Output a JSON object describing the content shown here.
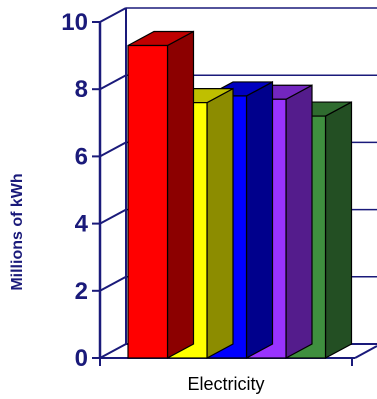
{
  "chart_data": {
    "type": "bar",
    "title": "",
    "xlabel": "",
    "ylabel": "Millions of kWh",
    "categories": [
      "Electricity"
    ],
    "series": [
      {
        "values": [
          9.3
        ],
        "color": "#ff0000"
      },
      {
        "values": [
          7.6
        ],
        "color": "#ffff00"
      },
      {
        "values": [
          7.8
        ],
        "color": "#0000ff"
      },
      {
        "values": [
          7.7
        ],
        "color": "#9933ff"
      },
      {
        "values": [
          7.2
        ],
        "color": "#3f8f3f"
      }
    ],
    "ylim": [
      0,
      10
    ],
    "yticks": [
      "0",
      "2",
      "4",
      "6",
      "8",
      "10"
    ],
    "grid": true,
    "three_d": true
  }
}
